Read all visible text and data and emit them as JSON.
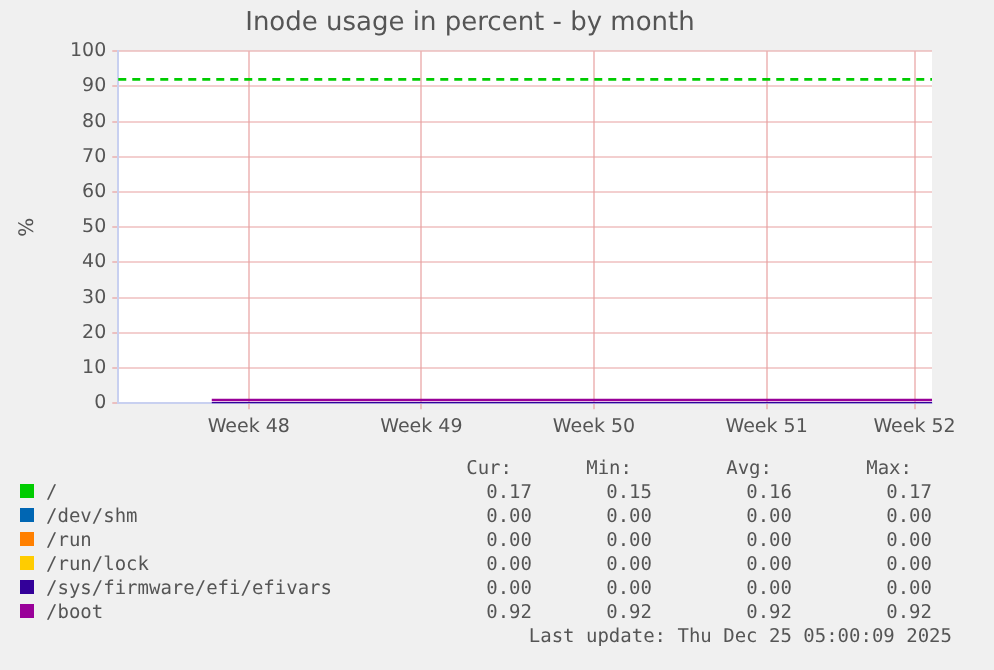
{
  "chart_data": {
    "type": "line",
    "title": "Inode usage in percent - by month",
    "ylabel": "%",
    "xlim": [
      "2025-11-22T05:00",
      "2025-12-25T05:00"
    ],
    "xticks": [
      {
        "value": "2025-11-27T12:00",
        "label": "Week 48"
      },
      {
        "value": "2025-12-04T12:00",
        "label": "Week 49"
      },
      {
        "value": "2025-12-11T12:00",
        "label": "Week 50"
      },
      {
        "value": "2025-12-18T12:00",
        "label": "Week 51"
      },
      {
        "value": "2025-12-24T12:00",
        "label": "Week 52"
      }
    ],
    "ylim": [
      0,
      100
    ],
    "yticks": [
      0,
      10,
      20,
      30,
      40,
      50,
      60,
      70,
      80,
      90,
      100
    ],
    "x": [
      "2025-11-26",
      "2025-12-25T05:00"
    ],
    "series": [
      {
        "name": "/",
        "color": "#00cc00",
        "values": [
          null,
          null
        ]
      },
      {
        "name": "/dev/shm",
        "color": "#0066b3",
        "values": [
          null,
          null
        ]
      },
      {
        "name": "/run",
        "color": "#ff8000",
        "values": [
          null,
          null
        ]
      },
      {
        "name": "/run/lock",
        "color": "#ffcc00",
        "values": [
          null,
          null
        ]
      },
      {
        "name": "/sys/firmware/efi/efivars",
        "color": "#330099",
        "values": [
          0,
          0
        ]
      },
      {
        "name": "/boot",
        "color": "#990099",
        "values": [
          0.9,
          0.9
        ]
      }
    ],
    "ref_lines": [
      {
        "axis": "y",
        "value": 92,
        "color": "#00cc00",
        "line_style": "dashed"
      }
    ],
    "grid": true,
    "legend": "bottom",
    "marker": "none",
    "line_style": "solid",
    "annotations": [
      "Cur:",
      "Min:",
      "Avg:",
      "Max:",
      "0.17",
      "0.15",
      "0.16",
      "0.17",
      "0.00",
      "0.00",
      "0.00",
      "0.00",
      "0.00",
      "0.00",
      "0.00",
      "0.00",
      "0.00",
      "0.00",
      "0.00",
      "0.00",
      "0.00",
      "0.00",
      "0.00",
      "0.00",
      "0.92",
      "0.92",
      "0.92",
      "0.92",
      "Last update: Thu Dec 25 05:00:09 2025"
    ]
  }
}
